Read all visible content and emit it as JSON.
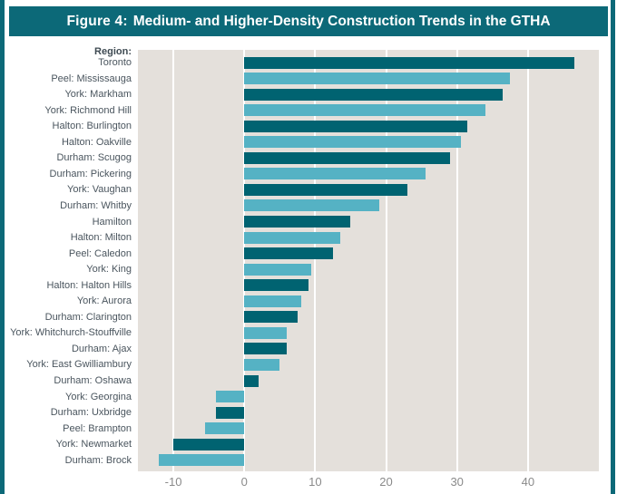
{
  "figure": {
    "title_prefix": "Figure 4:",
    "title_text": "Medium- and Higher-Density Construction Trends in the GTHA"
  },
  "chart_data": {
    "type": "bar",
    "orientation": "horizontal",
    "title": "Figure 4: Medium- and Higher-Density Construction Trends in the GTHA",
    "y_axis_header": "Region:",
    "xlabel": "",
    "ylabel": "Region",
    "xlim": [
      -15,
      50
    ],
    "x_ticks": [
      -10,
      0,
      10,
      20,
      30,
      40
    ],
    "grid": "vertical-white-gridlines",
    "legend": "none",
    "categories": [
      "Toronto",
      "Peel: Mississauga",
      "York: Markham",
      "York: Richmond Hill",
      "Halton: Burlington",
      "Halton: Oakville",
      "Durham: Scugog",
      "Durham: Pickering",
      "York: Vaughan",
      "Durham: Whitby",
      "Hamilton",
      "Halton: Milton",
      "Peel: Caledon",
      "York: King",
      "Halton: Halton Hills",
      "York: Aurora",
      "Durham: Clarington",
      "York: Whitchurch-Stouffville",
      "Durham: Ajax",
      "York: East Gwilliambury",
      "Durham: Oshawa",
      "York: Georgina",
      "Durham: Uxbridge",
      "Peel: Brampton",
      "York: Newmarket",
      "Durham: Brock"
    ],
    "values": [
      46.5,
      37.5,
      36.5,
      34,
      31.5,
      30.5,
      29,
      25.5,
      23,
      19,
      15,
      13.5,
      12.5,
      9.5,
      9,
      8,
      7.5,
      6,
      6,
      5,
      2,
      -4,
      -4,
      -5.5,
      -10,
      -12
    ],
    "bar_color_pattern": "alternating, first bar dark",
    "colors": {
      "bar_dark": "#006371",
      "bar_light": "#55b2c4",
      "plot_background": "#e4e0db",
      "header_teal": "#0c6978",
      "gridline": "#ffffff",
      "label_text": "#4a555e",
      "tick_text": "#8a8a8a",
      "title_text": "#ffffff"
    }
  }
}
